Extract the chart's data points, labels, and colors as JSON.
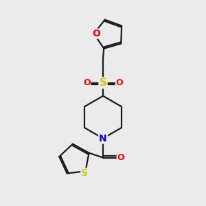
{
  "background_color": "#ebebeb",
  "bond_color": "#1a1a1a",
  "atom_colors": {
    "O": "#ff0000",
    "S_sulfonyl": "#cccc00",
    "S_thiophene": "#cccc00",
    "N": "#0000ff",
    "C": "#1a1a1a"
  },
  "line_width": 1.6,
  "font_size": 9,
  "figsize": [
    3.0,
    3.0
  ],
  "dpi": 100,
  "xlim": [
    0,
    10
  ],
  "ylim": [
    0,
    10
  ]
}
